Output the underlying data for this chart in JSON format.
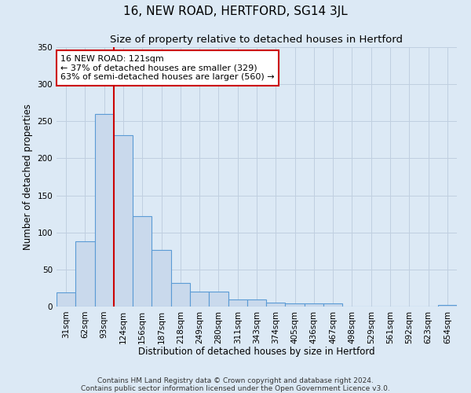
{
  "title": "16, NEW ROAD, HERTFORD, SG14 3JL",
  "subtitle": "Size of property relative to detached houses in Hertford",
  "xlabel": "Distribution of detached houses by size in Hertford",
  "ylabel": "Number of detached properties",
  "bar_labels": [
    "31sqm",
    "62sqm",
    "93sqm",
    "124sqm",
    "156sqm",
    "187sqm",
    "218sqm",
    "249sqm",
    "280sqm",
    "311sqm",
    "343sqm",
    "374sqm",
    "405sqm",
    "436sqm",
    "467sqm",
    "498sqm",
    "529sqm",
    "561sqm",
    "592sqm",
    "623sqm",
    "654sqm"
  ],
  "bar_values": [
    19,
    88,
    260,
    231,
    122,
    76,
    32,
    20,
    20,
    10,
    10,
    5,
    4,
    4,
    4,
    0,
    0,
    0,
    0,
    0,
    2
  ],
  "bar_color": "#c9d9ec",
  "bar_edge_color": "#5b9bd5",
  "bar_edge_width": 0.8,
  "vline_x": 2.5,
  "vline_color": "#cc0000",
  "annotation_title": "16 NEW ROAD: 121sqm",
  "annotation_line1": "← 37% of detached houses are smaller (329)",
  "annotation_line2": "63% of semi-detached houses are larger (560) →",
  "annotation_box_color": "#ffffff",
  "annotation_box_edge": "#cc0000",
  "ylim": [
    0,
    350
  ],
  "yticks": [
    0,
    50,
    100,
    150,
    200,
    250,
    300,
    350
  ],
  "grid_color": "#c0cfe0",
  "bg_color": "#dce9f5",
  "footer_line1": "Contains HM Land Registry data © Crown copyright and database right 2024.",
  "footer_line2": "Contains public sector information licensed under the Open Government Licence v3.0.",
  "title_fontsize": 11,
  "subtitle_fontsize": 9.5,
  "axis_label_fontsize": 8.5,
  "tick_fontsize": 7.5,
  "annotation_fontsize": 8,
  "footer_fontsize": 6.5
}
